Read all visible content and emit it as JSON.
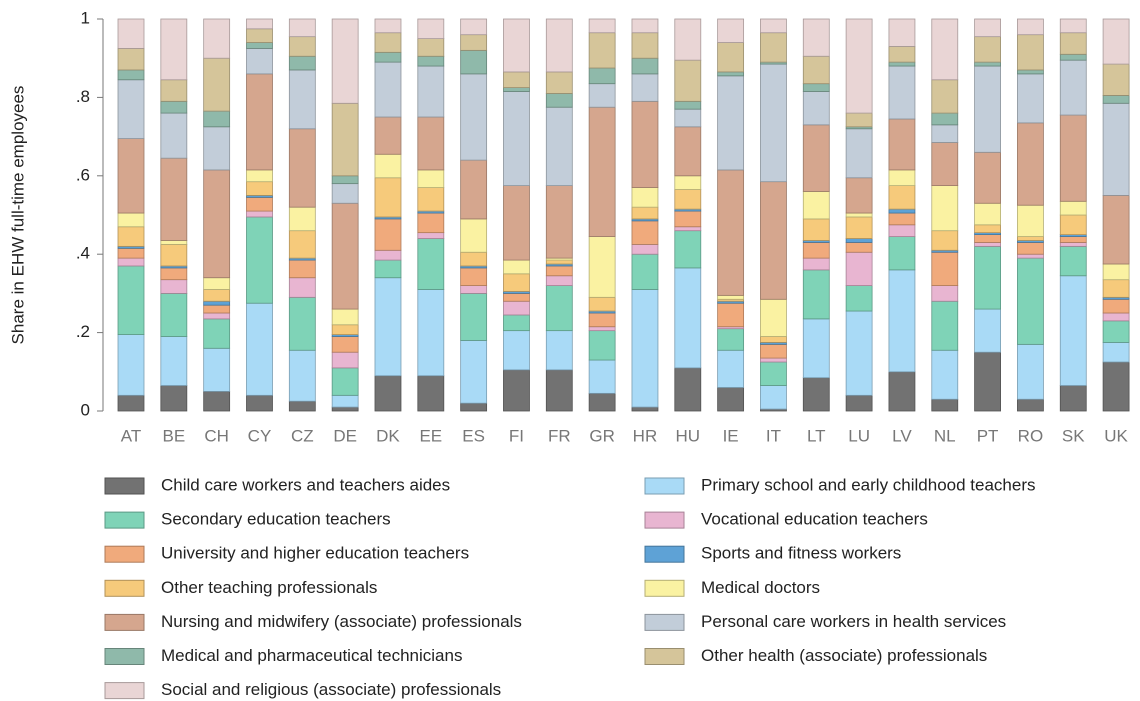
{
  "chart_data": {
    "type": "bar",
    "stacked": true,
    "y_label": "Share in EHW full-time employees",
    "categories": [
      "AT",
      "BE",
      "CH",
      "CY",
      "CZ",
      "DE",
      "DK",
      "EE",
      "ES",
      "FI",
      "FR",
      "GR",
      "HR",
      "HU",
      "IE",
      "IT",
      "LT",
      "LU",
      "LV",
      "NL",
      "PT",
      "RO",
      "SK",
      "UK"
    ],
    "ylim": [
      0,
      1
    ],
    "yticks": [
      0,
      {
        "value": 0.2,
        "label": ".2"
      },
      {
        "value": 0.4,
        "label": ".4"
      },
      {
        "value": 0.6,
        "label": ".6"
      },
      {
        "value": 0.8,
        "label": ".8"
      },
      1
    ],
    "grid": false,
    "legend": "bottom",
    "series": [
      {
        "name": "Child care workers and teachers aides",
        "color": "#727272",
        "values": [
          0.04,
          0.065,
          0.05,
          0.04,
          0.025,
          0.01,
          0.09,
          0.09,
          0.02,
          0.105,
          0.105,
          0.045,
          0.01,
          0.11,
          0.06,
          0.005,
          0.085,
          0.04,
          0.1,
          0.03,
          0.15,
          0.03,
          0.065,
          0.125
        ]
      },
      {
        "name": "Primary school and early childhood teachers",
        "color": "#a9daf6",
        "values": [
          0.155,
          0.125,
          0.11,
          0.235,
          0.13,
          0.03,
          0.25,
          0.22,
          0.16,
          0.1,
          0.1,
          0.085,
          0.3,
          0.255,
          0.095,
          0.06,
          0.15,
          0.215,
          0.26,
          0.125,
          0.11,
          0.14,
          0.28,
          0.05
        ]
      },
      {
        "name": "Secondary education teachers",
        "color": "#7fd3b7",
        "values": [
          0.175,
          0.11,
          0.075,
          0.22,
          0.135,
          0.07,
          0.045,
          0.13,
          0.12,
          0.04,
          0.115,
          0.075,
          0.09,
          0.095,
          0.055,
          0.06,
          0.125,
          0.065,
          0.085,
          0.125,
          0.16,
          0.22,
          0.075,
          0.055
        ]
      },
      {
        "name": "Vocational education teachers",
        "color": "#e8b5d1",
        "values": [
          0.02,
          0.035,
          0.015,
          0.015,
          0.05,
          0.04,
          0.025,
          0.015,
          0.02,
          0.035,
          0.025,
          0.01,
          0.025,
          0.01,
          0.005,
          0.01,
          0.03,
          0.085,
          0.03,
          0.04,
          0.01,
          0.01,
          0.01,
          0.02
        ]
      },
      {
        "name": "University and higher education teachers",
        "color": "#f0aa7c",
        "values": [
          0.025,
          0.03,
          0.02,
          0.035,
          0.045,
          0.04,
          0.08,
          0.05,
          0.045,
          0.02,
          0.025,
          0.035,
          0.06,
          0.04,
          0.06,
          0.035,
          0.04,
          0.025,
          0.03,
          0.085,
          0.02,
          0.03,
          0.015,
          0.035
        ]
      },
      {
        "name": "Sports and fitness workers",
        "color": "#5ea2d6",
        "values": [
          0.005,
          0.005,
          0.01,
          0.005,
          0.005,
          0.005,
          0.005,
          0.005,
          0.005,
          0.005,
          0.005,
          0.005,
          0.005,
          0.005,
          0.005,
          0.005,
          0.005,
          0.01,
          0.01,
          0.005,
          0.005,
          0.005,
          0.005,
          0.005
        ]
      },
      {
        "name": "Other teaching professionals",
        "color": "#f6ca7b",
        "values": [
          0.05,
          0.055,
          0.03,
          0.035,
          0.07,
          0.025,
          0.1,
          0.06,
          0.035,
          0.045,
          0.01,
          0.035,
          0.03,
          0.05,
          0.005,
          0.015,
          0.055,
          0.055,
          0.06,
          0.05,
          0.02,
          0.01,
          0.05,
          0.045
        ]
      },
      {
        "name": "Medical doctors",
        "color": "#faf2a2",
        "values": [
          0.035,
          0.01,
          0.03,
          0.03,
          0.06,
          0.04,
          0.06,
          0.045,
          0.085,
          0.035,
          0.005,
          0.155,
          0.05,
          0.035,
          0.01,
          0.095,
          0.07,
          0.01,
          0.04,
          0.115,
          0.055,
          0.08,
          0.035,
          0.04
        ]
      },
      {
        "name": "Nursing and midwifery (associate) professionals",
        "color": "#d5a68e",
        "values": [
          0.19,
          0.21,
          0.275,
          0.245,
          0.2,
          0.27,
          0.095,
          0.135,
          0.15,
          0.19,
          0.185,
          0.33,
          0.22,
          0.125,
          0.32,
          0.3,
          0.17,
          0.09,
          0.13,
          0.11,
          0.13,
          0.21,
          0.22,
          0.175
        ]
      },
      {
        "name": "Personal care workers in health services",
        "color": "#c2cdd9",
        "values": [
          0.15,
          0.115,
          0.11,
          0.065,
          0.15,
          0.05,
          0.14,
          0.13,
          0.22,
          0.24,
          0.2,
          0.06,
          0.07,
          0.045,
          0.24,
          0.3,
          0.085,
          0.125,
          0.135,
          0.045,
          0.22,
          0.125,
          0.14,
          0.235
        ]
      },
      {
        "name": "Medical and pharmaceutical technicians",
        "color": "#8fb9aa",
        "values": [
          0.025,
          0.03,
          0.04,
          0.015,
          0.035,
          0.02,
          0.025,
          0.025,
          0.06,
          0.01,
          0.035,
          0.04,
          0.04,
          0.02,
          0.01,
          0.005,
          0.02,
          0.005,
          0.01,
          0.03,
          0.01,
          0.01,
          0.015,
          0.02
        ]
      },
      {
        "name": "Other health (associate) professionals",
        "color": "#d5c59a",
        "values": [
          0.055,
          0.055,
          0.135,
          0.035,
          0.05,
          0.185,
          0.05,
          0.045,
          0.04,
          0.04,
          0.055,
          0.09,
          0.065,
          0.105,
          0.075,
          0.075,
          0.07,
          0.035,
          0.04,
          0.085,
          0.065,
          0.09,
          0.055,
          0.08
        ]
      },
      {
        "name": "Social and religious (associate) professionals",
        "color": "#e9d5d5",
        "values": [
          0.075,
          0.155,
          0.1,
          0.025,
          0.045,
          0.215,
          0.035,
          0.05,
          0.04,
          0.135,
          0.135,
          0.035,
          0.035,
          0.105,
          0.06,
          0.035,
          0.095,
          0.24,
          0.07,
          0.155,
          0.045,
          0.04,
          0.035,
          0.115
        ]
      }
    ]
  }
}
